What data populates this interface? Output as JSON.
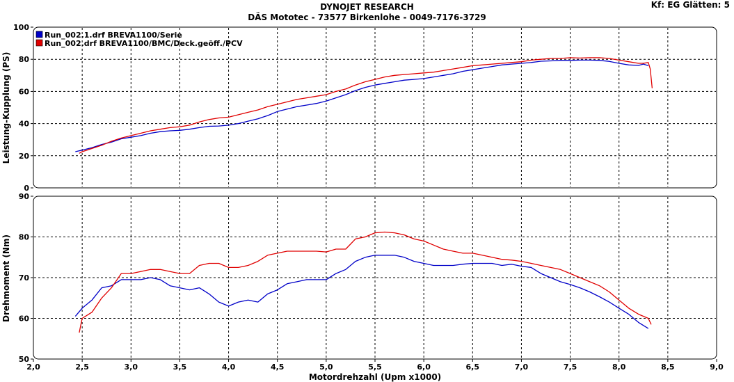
{
  "header": {
    "title": "DYNOJET RESEARCH",
    "subtitle": "DÄS Mototec - 73577 Birkenlohe  - 0049-7176-3729",
    "settings": "Kf: EG  Glätten: 5"
  },
  "colors": {
    "series_blue": "#0000c8",
    "series_red": "#e00000",
    "grid": "#000000",
    "panel_border": "#000000"
  },
  "chart_data": [
    {
      "type": "line",
      "ylabel": "Leistung-Kupplung (PS)",
      "xlabel": "",
      "ylim": [
        0,
        100
      ],
      "yticks": [
        0,
        20,
        40,
        60,
        80,
        100
      ],
      "xlim": [
        2.0,
        9.0
      ],
      "grid": true,
      "legend": "top-left",
      "series": [
        {
          "name": "Run_002.1.drf BREVA1100/Serie",
          "color": "#0000c8",
          "x": [
            2.43,
            2.5,
            2.6,
            2.7,
            2.8,
            2.9,
            3.0,
            3.1,
            3.2,
            3.3,
            3.4,
            3.5,
            3.6,
            3.7,
            3.8,
            3.9,
            4.0,
            4.1,
            4.2,
            4.3,
            4.4,
            4.5,
            4.6,
            4.7,
            4.8,
            4.9,
            5.0,
            5.1,
            5.2,
            5.3,
            5.4,
            5.5,
            5.6,
            5.7,
            5.8,
            5.9,
            6.0,
            6.1,
            6.2,
            6.3,
            6.4,
            6.5,
            6.6,
            6.7,
            6.8,
            6.9,
            7.0,
            7.1,
            7.2,
            7.3,
            7.4,
            7.5,
            7.6,
            7.7,
            7.8,
            7.9,
            8.0,
            8.1,
            8.2,
            8.25,
            8.3
          ],
          "y": [
            22.5,
            23.5,
            25,
            27,
            28.5,
            30.5,
            31.5,
            32.5,
            34,
            35,
            35.5,
            35.8,
            36.5,
            37.5,
            38.3,
            38.5,
            39,
            40,
            41.5,
            43,
            45,
            47.5,
            49,
            50.5,
            51.5,
            52.5,
            54,
            56,
            58,
            60.5,
            62.5,
            64,
            65,
            66,
            67,
            67.5,
            68,
            69,
            70,
            71,
            72.5,
            73.5,
            74.5,
            75.5,
            76.5,
            77,
            77.5,
            78,
            78.8,
            79,
            79.3,
            79.3,
            79.5,
            79.5,
            79.3,
            78.7,
            77.5,
            76.5,
            76.2,
            77,
            76
          ]
        },
        {
          "name": "Run_002.drf BREVA1100/BMC/Deck.geöff./PCV",
          "color": "#e00000",
          "x": [
            2.47,
            2.5,
            2.6,
            2.7,
            2.8,
            2.9,
            3.0,
            3.1,
            3.2,
            3.3,
            3.4,
            3.5,
            3.6,
            3.7,
            3.8,
            3.9,
            4.0,
            4.1,
            4.2,
            4.3,
            4.4,
            4.5,
            4.6,
            4.7,
            4.8,
            4.9,
            5.0,
            5.1,
            5.2,
            5.3,
            5.4,
            5.5,
            5.6,
            5.7,
            5.8,
            5.9,
            6.0,
            6.1,
            6.2,
            6.3,
            6.4,
            6.5,
            6.6,
            6.7,
            6.8,
            6.9,
            7.0,
            7.1,
            7.2,
            7.3,
            7.4,
            7.5,
            7.6,
            7.7,
            7.8,
            7.9,
            8.0,
            8.1,
            8.2,
            8.25,
            8.3,
            8.32,
            8.34
          ],
          "y": [
            21.5,
            22.5,
            24.5,
            26.5,
            29,
            31,
            32.5,
            34,
            35.5,
            36.5,
            37.5,
            38,
            39,
            41,
            42.5,
            43.5,
            44,
            45.5,
            47,
            48.5,
            50.5,
            52,
            53.5,
            55,
            56,
            57,
            58,
            60,
            61.5,
            64,
            66,
            67.5,
            69,
            70,
            70.5,
            71,
            71.5,
            72,
            73,
            74,
            75,
            76,
            76.5,
            77,
            77.5,
            78,
            78.5,
            79.5,
            80,
            80.5,
            80.5,
            81,
            80.8,
            81,
            81,
            80.5,
            79.5,
            78.5,
            77.5,
            77.5,
            78,
            74,
            62
          ]
        }
      ]
    },
    {
      "type": "line",
      "ylabel": "Drehmoment (Nm)",
      "xlabel": "Motordrehzahl (Upm x1000)",
      "ylim": [
        50,
        90
      ],
      "yticks": [
        50,
        60,
        70,
        80,
        90
      ],
      "xlim": [
        2.0,
        9.0
      ],
      "xticks": [
        "2,0",
        "2,5",
        "3,0",
        "3,5",
        "4,0",
        "4,5",
        "5,0",
        "5,5",
        "6,0",
        "6,5",
        "7,0",
        "7,5",
        "8,0",
        "8,5",
        "9,0"
      ],
      "grid": true,
      "series": [
        {
          "name": "Run_002.1.drf BREVA1100/Serie",
          "color": "#0000c8",
          "x": [
            2.43,
            2.5,
            2.6,
            2.7,
            2.8,
            2.9,
            3.0,
            3.1,
            3.2,
            3.3,
            3.4,
            3.5,
            3.6,
            3.7,
            3.8,
            3.9,
            4.0,
            4.1,
            4.2,
            4.3,
            4.4,
            4.5,
            4.6,
            4.7,
            4.8,
            4.9,
            5.0,
            5.1,
            5.2,
            5.3,
            5.4,
            5.5,
            5.6,
            5.7,
            5.8,
            5.9,
            6.0,
            6.1,
            6.2,
            6.3,
            6.4,
            6.5,
            6.6,
            6.7,
            6.8,
            6.9,
            7.0,
            7.1,
            7.2,
            7.3,
            7.4,
            7.5,
            7.6,
            7.7,
            7.8,
            7.9,
            8.0,
            8.1,
            8.2,
            8.3
          ],
          "y": [
            60.5,
            62.5,
            64.5,
            67.5,
            68,
            69.5,
            69.5,
            69.5,
            70,
            69.5,
            68,
            67.5,
            67,
            67.5,
            66,
            64,
            63,
            64,
            64.5,
            64,
            66,
            67,
            68.5,
            69,
            69.5,
            69.5,
            69.5,
            71,
            72,
            74,
            75,
            75.5,
            75.5,
            75.5,
            75,
            74,
            73.5,
            73,
            73,
            73,
            73.3,
            73.5,
            73.5,
            73.5,
            73,
            73.3,
            72.8,
            72.5,
            71,
            70,
            69,
            68.3,
            67.5,
            66.5,
            65.3,
            64,
            62.5,
            61,
            59,
            57.5
          ]
        },
        {
          "name": "Run_002.drf BREVA1100/BMC/Deck.geöff./PCV",
          "color": "#e00000",
          "x": [
            2.47,
            2.5,
            2.6,
            2.7,
            2.8,
            2.9,
            3.0,
            3.1,
            3.2,
            3.3,
            3.4,
            3.5,
            3.6,
            3.7,
            3.8,
            3.9,
            4.0,
            4.1,
            4.2,
            4.3,
            4.4,
            4.5,
            4.6,
            4.7,
            4.8,
            4.9,
            5.0,
            5.1,
            5.2,
            5.3,
            5.4,
            5.5,
            5.6,
            5.7,
            5.8,
            5.9,
            6.0,
            6.1,
            6.2,
            6.3,
            6.4,
            6.5,
            6.6,
            6.7,
            6.8,
            6.9,
            7.0,
            7.1,
            7.2,
            7.3,
            7.4,
            7.5,
            7.6,
            7.7,
            7.8,
            7.9,
            8.0,
            8.1,
            8.2,
            8.3,
            8.33
          ],
          "y": [
            56.5,
            60,
            61.5,
            65,
            67.5,
            71,
            71,
            71.5,
            72,
            72,
            71.5,
            71,
            71,
            73,
            73.5,
            73.5,
            72.5,
            72.5,
            73,
            74,
            75.5,
            76,
            76.5,
            76.5,
            76.5,
            76.5,
            76.3,
            77,
            77,
            79.5,
            80,
            81,
            81.2,
            81,
            80.5,
            79.5,
            79,
            78,
            77,
            76.5,
            76,
            76,
            75.5,
            75,
            74.5,
            74.3,
            74,
            73.5,
            73,
            72.5,
            72,
            71,
            70,
            69,
            68,
            66.5,
            64.5,
            62.5,
            61,
            60,
            58.5
          ]
        }
      ]
    }
  ]
}
